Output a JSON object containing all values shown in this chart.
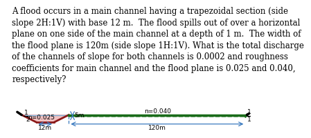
{
  "text_block": "A flood occurs in a main channel having a trapezoidal section (side\nslope 2H:1V) with base 12 m.  The flood spills out of over a horizontal\nplane on one side of the main channel at a depth of 1 m.  The width of\nthe flood plane is 120m (side slope 1H:1V). What is the total discharge\nof the channels of slope for both channels is 0.0002 and roughness\ncoefficients for main channel and the flood plane is 0.025 and 0.040,\nrespectively?",
  "n_main": "n=0.025",
  "n_flood": "n=0.040",
  "base_label": "12m",
  "flood_label": "120m",
  "depth_label": "5m",
  "bg_color": "#ffffff",
  "main_channel_fill": "#f0b8b8",
  "flood_fill": "#b8e0b8",
  "main_line_color": "#8b1a1a",
  "flood_line_color": "#1a6b1a",
  "water_line_color": "#7ab0d8",
  "dim_color": "#3a7abf",
  "text_color": "#000000",
  "label_fontsize": 6.5,
  "text_fontsize": 8.5
}
